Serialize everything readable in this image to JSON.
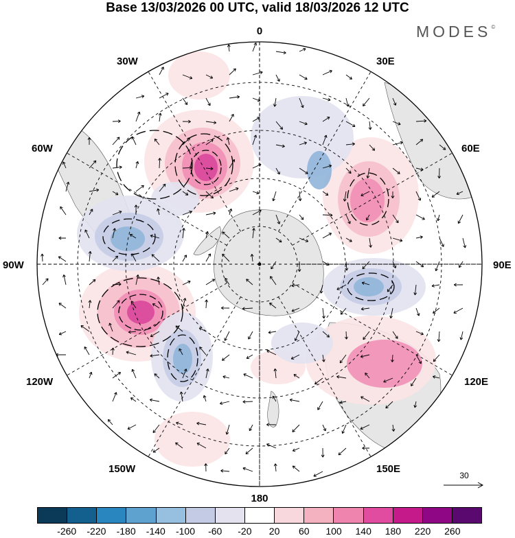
{
  "title": "Base 13/03/2026 00 UTC, valid 18/03/2026 12 UTC",
  "logo": "MODES",
  "logo_mark": "©",
  "longitude_labels": {
    "top": "0",
    "bottom": "180",
    "left": "90W",
    "right": "90E",
    "upper_left_1": "30W",
    "upper_left_2": "60W",
    "upper_right_1": "30E",
    "upper_right_2": "60E",
    "lower_left_1": "120W",
    "lower_left_2": "150W",
    "lower_right_1": "120E",
    "lower_right_2": "150E"
  },
  "reference_vector": {
    "value": "30"
  },
  "colorbar": {
    "colors": [
      "#0b3a58",
      "#13608f",
      "#2a86bf",
      "#5ea3d0",
      "#97bfe0",
      "#c4cce5",
      "#e4e2ef",
      "#ffffff",
      "#f8d8dc",
      "#f4b2c0",
      "#ef84ae",
      "#e14ca0",
      "#c51b8a",
      "#8f0785",
      "#5a0a6e"
    ],
    "tick_labels": [
      "-260",
      "-220",
      "-180",
      "-140",
      "-100",
      "-60",
      "-20",
      "20",
      "60",
      "100",
      "140",
      "180",
      "220",
      "260"
    ]
  },
  "map_colors": {
    "land": "#e6e6e6",
    "positive_1": "#fbe3e6",
    "positive_2": "#f6bfcb",
    "positive_3": "#ef8fb6",
    "positive_4": "#d9469b",
    "negative_1": "#e2e2ef",
    "negative_2": "#c4cce5",
    "negative_3": "#90b5d9",
    "negative_4": "#3f8ac4"
  }
}
